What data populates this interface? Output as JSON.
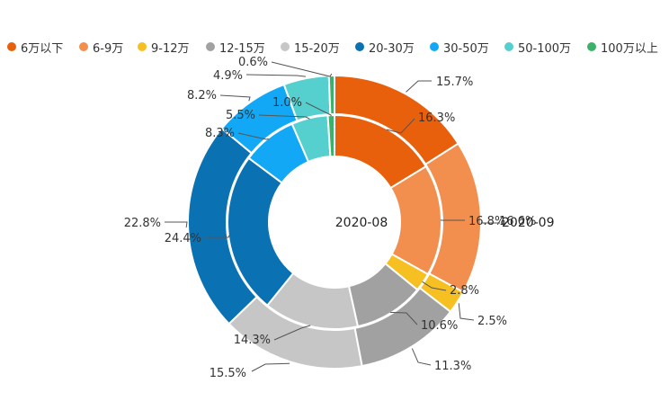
{
  "chart_data": {
    "type": "pie",
    "variant": "nested-donut",
    "legend_position": "top",
    "categories": [
      "6万以下",
      "6-9万",
      "9-12万",
      "12-15万",
      "15-20万",
      "20-30万",
      "30-50万",
      "50-100万",
      "100万以上"
    ],
    "colors": [
      "#e8600c",
      "#f28f4e",
      "#f6c023",
      "#a1a1a1",
      "#c6c6c6",
      "#0a71b2",
      "#13a8f5",
      "#56d0cf",
      "#3bb26a"
    ],
    "series": [
      {
        "name": "2020-09",
        "ring": "outer",
        "values": [
          15.7,
          16.6,
          2.5,
          11.3,
          15.5,
          22.8,
          8.2,
          4.9,
          0.6
        ],
        "labels": [
          "15.7%",
          "16.6%",
          "2.5%",
          "11.3%",
          "15.5%",
          "22.8%",
          "8.2%",
          "4.9%",
          "0.6%"
        ]
      },
      {
        "name": "2020-08",
        "ring": "inner",
        "values": [
          16.3,
          16.8,
          2.8,
          10.6,
          14.3,
          24.4,
          8.3,
          5.5,
          1.0
        ],
        "labels": [
          "16.3%",
          "16.8%",
          "2.8%",
          "10.6%",
          "14.3%",
          "24.4%",
          "8.3%",
          "5.5%",
          "1.0%"
        ]
      }
    ]
  }
}
